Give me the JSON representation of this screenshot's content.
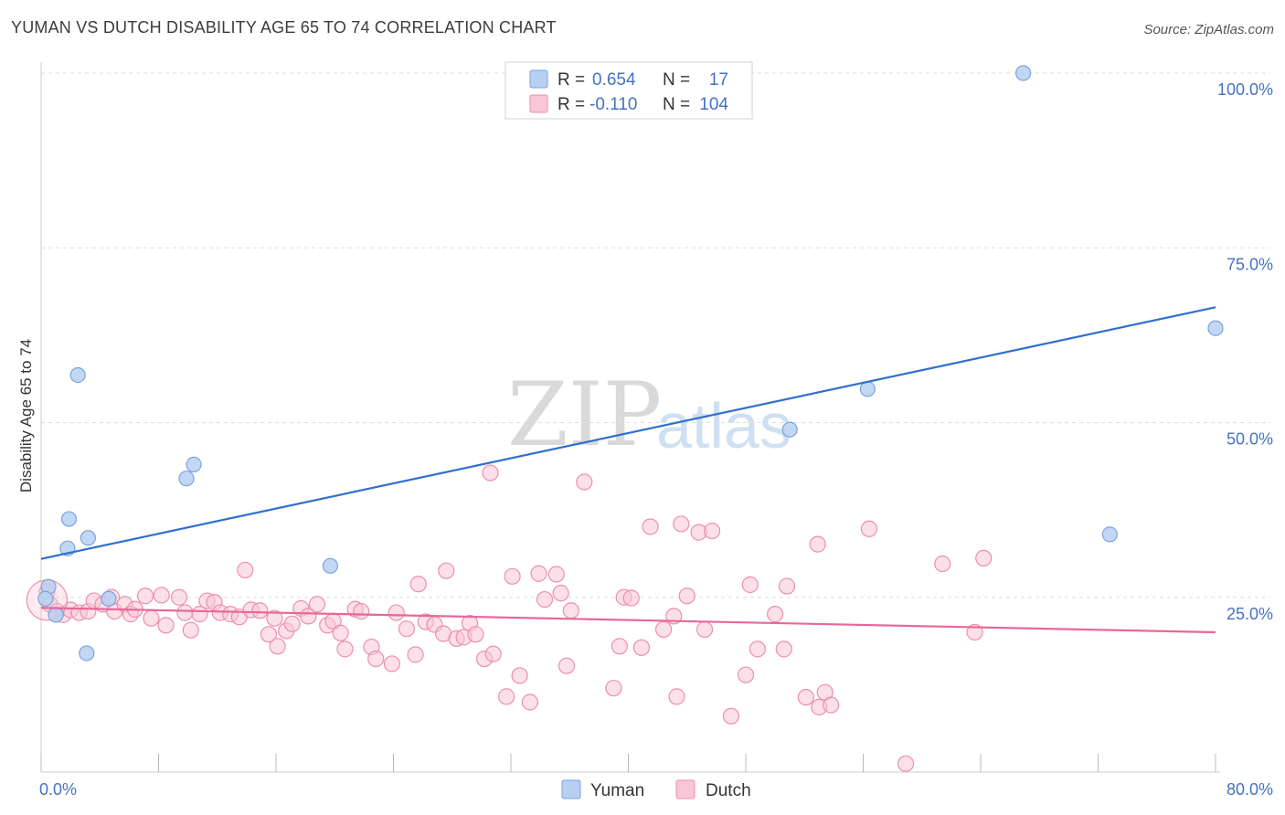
{
  "title": "YUMAN VS DUTCH DISABILITY AGE 65 TO 74 CORRELATION CHART",
  "source": "Source: ZipAtlas.com",
  "watermark": {
    "zip": "ZIP",
    "atlas": "atlas"
  },
  "colors": {
    "yuman_fill": "#b7d0f2",
    "yuman_stroke": "#7aa3dc",
    "yuman_line": "#2f6fcf",
    "dutch_fill": "#f8c6d6",
    "dutch_stroke": "#ec8fad",
    "dutch_line": "#e8679a",
    "grid": "#dddddd",
    "axis_text": "#4472c4"
  },
  "legend_top": [
    {
      "series": "Yuman",
      "r_label": "R =",
      "r_value": "0.654",
      "n_label": "N =",
      "n_value": "17"
    },
    {
      "series": "Dutch",
      "r_label": "R =",
      "r_value": "-0.110",
      "n_label": "N =",
      "n_value": "104"
    }
  ],
  "legend_bottom": [
    "Yuman",
    "Dutch"
  ],
  "chart_data": {
    "type": "scatter",
    "title": "YUMAN VS DUTCH DISABILITY AGE 65 TO 74 CORRELATION CHART",
    "xlabel": "",
    "ylabel": "Disability Age 65 to 74",
    "xlim": [
      0,
      80
    ],
    "ylim": [
      0,
      100
    ],
    "x_tick_labels": [
      {
        "value": 0,
        "label": "0.0%"
      },
      {
        "value": 80,
        "label": "80.0%"
      }
    ],
    "y_tick_labels": [
      {
        "value": 100,
        "label": "100.0%"
      },
      {
        "value": 75,
        "label": "75.0%"
      },
      {
        "value": 50,
        "label": "50.0%"
      },
      {
        "value": 25,
        "label": "25.0%"
      }
    ],
    "series": [
      {
        "name": "Yuman",
        "r": 0.654,
        "n": 17,
        "trend": {
          "x": [
            0,
            80
          ],
          "y": [
            30.5,
            66.5
          ]
        },
        "points": [
          [
            0.5,
            26.5
          ],
          [
            0.3,
            24.8
          ],
          [
            1.0,
            22.5
          ],
          [
            1.8,
            32.0
          ],
          [
            1.9,
            36.2
          ],
          [
            2.5,
            56.8
          ],
          [
            3.2,
            33.5
          ],
          [
            3.1,
            17.0
          ],
          [
            4.6,
            24.8
          ],
          [
            9.9,
            42.0
          ],
          [
            10.4,
            44.0
          ],
          [
            19.7,
            29.5
          ],
          [
            51.0,
            49.0
          ],
          [
            56.3,
            54.8
          ],
          [
            66.9,
            100.0
          ],
          [
            72.8,
            34.0
          ],
          [
            80.0,
            63.5
          ]
        ]
      },
      {
        "name": "Dutch",
        "r": -0.11,
        "n": 104,
        "trend": {
          "x": [
            0,
            80
          ],
          "y": [
            23.5,
            20.0
          ]
        },
        "points": [
          [
            0.4,
            25.8
          ],
          [
            0.6,
            24.0
          ],
          [
            1.1,
            23.0
          ],
          [
            1.5,
            22.5
          ],
          [
            2.0,
            23.2
          ],
          [
            2.6,
            22.8
          ],
          [
            3.2,
            23.0
          ],
          [
            3.6,
            24.5
          ],
          [
            4.2,
            24.0
          ],
          [
            4.8,
            25.0
          ],
          [
            5.0,
            23.0
          ],
          [
            5.7,
            24.0
          ],
          [
            6.1,
            22.6
          ],
          [
            6.4,
            23.3
          ],
          [
            7.1,
            25.2
          ],
          [
            7.5,
            22.0
          ],
          [
            8.2,
            25.3
          ],
          [
            8.5,
            21.0
          ],
          [
            9.4,
            25.0
          ],
          [
            9.8,
            22.8
          ],
          [
            10.2,
            20.3
          ],
          [
            10.8,
            22.6
          ],
          [
            11.3,
            24.5
          ],
          [
            11.8,
            24.3
          ],
          [
            12.2,
            22.8
          ],
          [
            12.9,
            22.6
          ],
          [
            13.5,
            22.2
          ],
          [
            13.9,
            28.9
          ],
          [
            14.3,
            23.2
          ],
          [
            14.9,
            23.1
          ],
          [
            15.5,
            19.7
          ],
          [
            15.9,
            22.0
          ],
          [
            16.1,
            18.0
          ],
          [
            16.7,
            20.2
          ],
          [
            17.1,
            21.2
          ],
          [
            17.7,
            23.4
          ],
          [
            18.2,
            22.3
          ],
          [
            18.8,
            24.0
          ],
          [
            19.5,
            21.0
          ],
          [
            19.9,
            21.6
          ],
          [
            20.4,
            19.9
          ],
          [
            20.7,
            17.6
          ],
          [
            21.4,
            23.3
          ],
          [
            21.8,
            23.0
          ],
          [
            22.5,
            17.9
          ],
          [
            22.8,
            16.2
          ],
          [
            23.9,
            15.5
          ],
          [
            24.2,
            22.8
          ],
          [
            24.9,
            20.5
          ],
          [
            25.5,
            16.8
          ],
          [
            25.7,
            26.9
          ],
          [
            26.2,
            21.5
          ],
          [
            26.8,
            21.1
          ],
          [
            27.4,
            19.8
          ],
          [
            27.6,
            28.8
          ],
          [
            28.3,
            19.1
          ],
          [
            28.8,
            19.3
          ],
          [
            29.2,
            21.3
          ],
          [
            29.6,
            19.7
          ],
          [
            30.2,
            16.2
          ],
          [
            30.6,
            42.8
          ],
          [
            30.8,
            16.9
          ],
          [
            31.7,
            10.8
          ],
          [
            32.1,
            28.0
          ],
          [
            32.6,
            13.8
          ],
          [
            33.3,
            10.0
          ],
          [
            33.9,
            28.4
          ],
          [
            34.3,
            24.7
          ],
          [
            35.1,
            28.3
          ],
          [
            35.4,
            25.6
          ],
          [
            35.8,
            15.2
          ],
          [
            36.1,
            23.1
          ],
          [
            37.0,
            41.5
          ],
          [
            39.0,
            12.0
          ],
          [
            39.4,
            18.0
          ],
          [
            39.7,
            25.0
          ],
          [
            40.2,
            24.9
          ],
          [
            40.9,
            17.8
          ],
          [
            41.5,
            35.1
          ],
          [
            42.4,
            20.4
          ],
          [
            43.1,
            22.3
          ],
          [
            43.3,
            10.8
          ],
          [
            43.6,
            35.5
          ],
          [
            44.8,
            34.3
          ],
          [
            45.2,
            20.4
          ],
          [
            45.7,
            34.5
          ],
          [
            47.0,
            8.0
          ],
          [
            48.0,
            13.9
          ],
          [
            48.3,
            26.8
          ],
          [
            48.8,
            17.6
          ],
          [
            50.0,
            22.6
          ],
          [
            50.6,
            17.6
          ],
          [
            50.8,
            26.6
          ],
          [
            52.1,
            10.7
          ],
          [
            52.9,
            32.6
          ],
          [
            53.0,
            9.3
          ],
          [
            53.4,
            11.4
          ],
          [
            53.8,
            9.6
          ],
          [
            56.4,
            34.8
          ],
          [
            58.9,
            1.2
          ],
          [
            61.4,
            29.8
          ],
          [
            63.6,
            20.0
          ],
          [
            64.2,
            30.6
          ],
          [
            44.0,
            25.2
          ]
        ]
      }
    ]
  }
}
